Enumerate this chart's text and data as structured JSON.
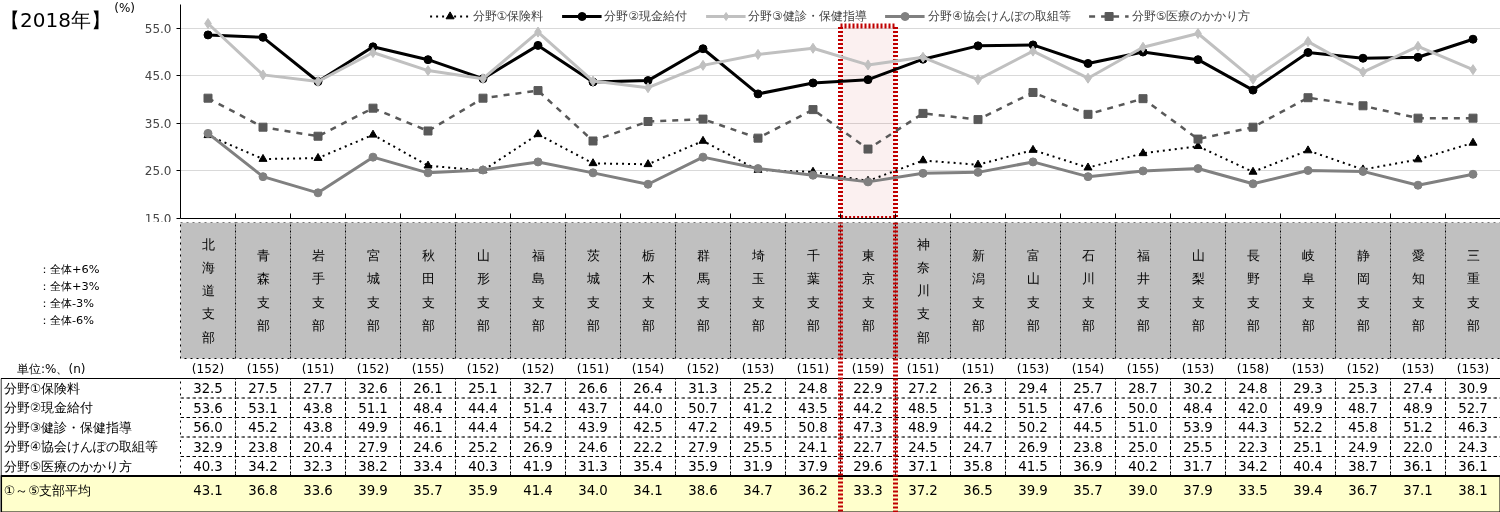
{
  "chart_data": {
    "type": "line",
    "title": "【2018年】",
    "ylabel": "(%)",
    "categories": [
      "北海道支部",
      "青森支部",
      "岩手支部",
      "宮城支部",
      "秋田支部",
      "山形支部",
      "福島支部",
      "茨城支部",
      "栃木支部",
      "群馬支部",
      "埼玉支部",
      "千葉支部",
      "東京支部",
      "神奈川支部",
      "新潟支部",
      "富山支部",
      "石川支部",
      "福井支部",
      "山梨支部",
      "長野支部",
      "岐阜支部",
      "静岡支部",
      "愛知支部",
      "三重支部"
    ],
    "series": [
      {
        "name": "分野①保険料",
        "color": "#000000",
        "marker": "triangle",
        "line_style": "dotted",
        "value_labels": [
          "32.5",
          "27.5",
          "27.7",
          "32.6",
          "26.1",
          "25.1",
          "32.7",
          "26.6",
          "26.4",
          "31.3",
          "25.2",
          "24.8",
          "22.9",
          "27.2",
          "26.3",
          "29.4",
          "25.7",
          "28.7",
          "30.2",
          "24.8",
          "29.3",
          "25.3",
          "27.4",
          "30.9"
        ],
        "values": [
          32.5,
          27.5,
          27.7,
          32.6,
          26.1,
          25.1,
          32.7,
          26.6,
          26.4,
          31.3,
          25.2,
          24.8,
          22.9,
          27.2,
          26.3,
          29.4,
          25.7,
          28.7,
          30.2,
          24.8,
          29.3,
          25.3,
          27.4,
          30.9
        ]
      },
      {
        "name": "分野②現金給付",
        "color": "#000000",
        "marker": "circle",
        "line_style": "solid",
        "value_labels": [
          "53.6",
          "53.1",
          "43.8",
          "51.1",
          "48.4",
          "44.4",
          "51.4",
          "43.7",
          "44.0",
          "50.7",
          "41.2",
          "43.5",
          "44.2",
          "48.5",
          "51.3",
          "51.5",
          "47.6",
          "50.0",
          "48.4",
          "42.0",
          "49.9",
          "48.7",
          "48.9",
          "52.7"
        ],
        "values": [
          53.6,
          53.1,
          43.8,
          51.1,
          48.4,
          44.4,
          51.4,
          43.7,
          44.0,
          50.7,
          41.2,
          43.5,
          44.2,
          48.5,
          51.3,
          51.5,
          47.6,
          50.0,
          48.4,
          42.0,
          49.9,
          48.7,
          48.9,
          52.7
        ]
      },
      {
        "name": "分野③健診・保健指導",
        "color": "#c0c0c0",
        "marker": "diamond",
        "line_style": "solid",
        "value_labels": [
          "56.0",
          "45.2",
          "43.8",
          "49.9",
          "46.1",
          "44.4",
          "54.2",
          "43.9",
          "42.5",
          "47.2",
          "49.5",
          "50.8",
          "47.3",
          "48.9",
          "44.2",
          "50.2",
          "44.5",
          "51.0",
          "53.9",
          "44.3",
          "52.2",
          "45.8",
          "51.2",
          "46.3"
        ],
        "values": [
          56.0,
          45.2,
          43.8,
          49.9,
          46.1,
          44.4,
          54.2,
          43.9,
          42.5,
          47.2,
          49.5,
          50.8,
          47.3,
          48.9,
          44.2,
          50.2,
          44.5,
          51.0,
          53.9,
          44.3,
          52.2,
          45.8,
          51.2,
          46.3
        ]
      },
      {
        "name": "分野④協会けんぽの取組等",
        "color": "#808080",
        "marker": "circle",
        "line_style": "solid",
        "value_labels": [
          "32.9",
          "23.8",
          "20.4",
          "27.9",
          "24.6",
          "25.2",
          "26.9",
          "24.6",
          "22.2",
          "27.9",
          "25.5",
          "24.1",
          "22.7",
          "24.5",
          "24.7",
          "26.9",
          "23.8",
          "25.0",
          "25.5",
          "22.3",
          "25.1",
          "24.9",
          "22.0",
          "24.3"
        ],
        "values": [
          32.9,
          23.8,
          20.4,
          27.9,
          24.6,
          25.2,
          26.9,
          24.6,
          22.2,
          27.9,
          25.5,
          24.1,
          22.7,
          24.5,
          24.7,
          26.9,
          23.8,
          25.0,
          25.5,
          22.3,
          25.1,
          24.9,
          22.0,
          24.3
        ]
      },
      {
        "name": "分野⑤医療のかかり方",
        "color": "#595959",
        "marker": "square",
        "line_style": "dashed",
        "value_labels": [
          "40.3",
          "34.2",
          "32.3",
          "38.2",
          "33.4",
          "40.3",
          "41.9",
          "31.3",
          "35.4",
          "35.9",
          "31.9",
          "37.9",
          "29.6",
          "37.1",
          "35.8",
          "41.5",
          "36.9",
          "40.2",
          "31.7",
          "34.2",
          "40.4",
          "38.7",
          "36.1",
          "36.1"
        ],
        "values": [
          40.3,
          34.2,
          32.3,
          38.2,
          33.4,
          40.3,
          41.9,
          31.3,
          35.4,
          35.9,
          31.9,
          37.9,
          29.6,
          37.1,
          35.8,
          41.5,
          36.9,
          40.2,
          31.7,
          34.2,
          40.4,
          38.7,
          36.1,
          36.1
        ]
      }
    ],
    "ylim": [
      15,
      60
    ],
    "yticks": [
      {
        "value": 15,
        "label": "15.0"
      },
      {
        "value": 25,
        "label": "25.0"
      },
      {
        "value": 35,
        "label": "35.0"
      },
      {
        "value": 45,
        "label": "45.0"
      },
      {
        "value": 55,
        "label": "55.0"
      }
    ],
    "grid": "y",
    "legend": "top",
    "tick_labels": "y",
    "bands": [
      {
        "axis": "x",
        "from": "東京支部",
        "to": "東京支部",
        "color": "#c00000"
      }
    ],
    "annotations": [
      "単位:%、(n)",
      "(152)",
      "(155)",
      "(151)",
      "(152)",
      "(155)",
      "(152)",
      "(152)",
      "(151)",
      "(154)",
      "(152)",
      "(153)",
      "(151)",
      "(159)",
      "(151)",
      "(151)",
      "(153)",
      "(154)",
      "(155)",
      "(153)",
      "(158)",
      "(153)",
      "(152)",
      "(153)",
      "(153)",
      "①～⑤支部平均",
      "43.1",
      "36.8",
      "33.6",
      "39.9",
      "35.7",
      "35.9",
      "41.4",
      "34.0",
      "34.1",
      "38.6",
      "34.7",
      "36.2",
      "33.3",
      "37.2",
      "36.5",
      "39.9",
      "35.7",
      "39.0",
      "37.9",
      "33.5",
      "39.4",
      "36.7",
      "37.1",
      "38.1",
      "：全体+6%",
      "：全体+3%",
      "：全体-3%",
      "：全体-6%"
    ]
  }
}
